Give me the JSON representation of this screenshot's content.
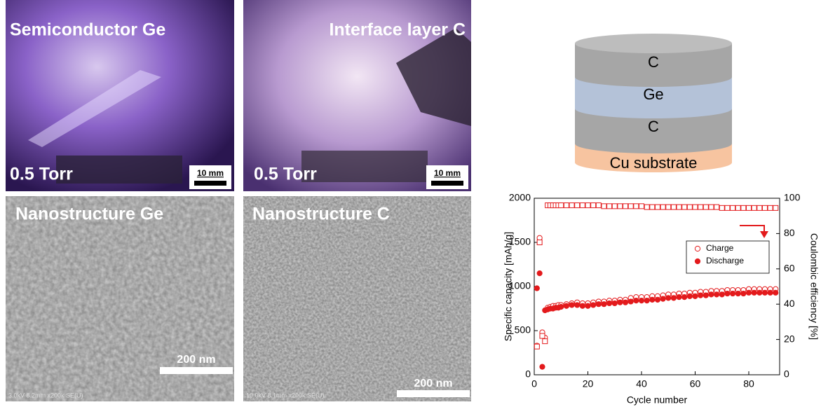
{
  "panels": {
    "photos": [
      {
        "label": "Semiconductor Ge",
        "pressure": "0.5 Torr",
        "scale_bar": "10 mm"
      },
      {
        "label": "Interface layer C",
        "pressure": "0.5 Torr",
        "scale_bar": "10 mm"
      }
    ],
    "sem": [
      {
        "label": "Nanostructure Ge",
        "scale_bar": "200 nm",
        "footer": "3.0kV 8.2mm x200k SE(U)"
      },
      {
        "label": "Nanostructure C",
        "scale_bar": "200 nm",
        "footer": "10.0kV 8.1mm x200k SE(U)"
      }
    ]
  },
  "diagram": {
    "layers": [
      "C",
      "Ge",
      "C",
      "Cu substrate"
    ]
  },
  "chart_data": {
    "type": "scatter",
    "x_label": "Cycle number",
    "y_label": "Specific capacity [mAh/g]",
    "y2_label": "Coulombic efficiency [%]",
    "x": [
      1,
      2,
      3,
      4,
      5,
      6,
      7,
      8,
      9,
      10,
      12,
      14,
      16,
      18,
      20,
      22,
      24,
      26,
      28,
      30,
      32,
      34,
      36,
      38,
      40,
      42,
      44,
      46,
      48,
      50,
      52,
      54,
      56,
      58,
      60,
      62,
      64,
      66,
      68,
      70,
      72,
      74,
      76,
      78,
      80,
      82,
      84,
      86,
      88,
      90
    ],
    "series": [
      {
        "name": "Charge",
        "color": "#e31a1c",
        "marker": "open-circle",
        "values": [
          330,
          1550,
          480,
          420,
          760,
          770,
          780,
          780,
          790,
          790,
          800,
          810,
          820,
          810,
          810,
          820,
          830,
          830,
          840,
          840,
          850,
          850,
          870,
          880,
          880,
          880,
          890,
          890,
          900,
          910,
          910,
          920,
          920,
          930,
          930,
          940,
          940,
          950,
          950,
          950,
          960,
          960,
          960,
          960,
          970,
          970,
          970,
          970,
          970,
          970
        ]
      },
      {
        "name": "Discharge",
        "color": "#e31a1c",
        "marker": "filled-circle",
        "values": [
          980,
          1150,
          90,
          730,
          740,
          750,
          750,
          760,
          760,
          770,
          780,
          790,
          790,
          780,
          780,
          790,
          800,
          800,
          810,
          810,
          820,
          820,
          830,
          840,
          840,
          840,
          850,
          850,
          860,
          870,
          870,
          880,
          880,
          890,
          890,
          900,
          900,
          910,
          910,
          910,
          920,
          920,
          920,
          920,
          930,
          930,
          930,
          930,
          930,
          930
        ]
      },
      {
        "color": "#e31a1c",
        "marker": "open-square",
        "axis": "y2",
        "values": [
          16,
          75,
          22,
          19,
          96,
          96,
          96,
          96,
          96,
          96,
          96,
          96,
          96,
          96,
          96,
          96,
          96,
          95.5,
          95.5,
          95.5,
          95.5,
          95.5,
          95.5,
          95.5,
          95.5,
          95,
          95,
          95,
          95,
          95,
          95,
          95,
          95,
          95,
          95,
          95,
          95,
          95,
          95,
          94.5,
          94.5,
          94.5,
          94.5,
          94.5,
          94.5,
          94.5,
          94.5,
          94.5,
          94.5,
          94.5
        ]
      }
    ],
    "xlim": [
      0,
      91.5
    ],
    "xticks": [
      0,
      20,
      40,
      60,
      80
    ],
    "ylim": [
      0,
      2000
    ],
    "yticks": [
      0,
      500,
      1000,
      1500,
      2000
    ],
    "y2lim": [
      0,
      100
    ],
    "y2ticks": [
      0,
      20,
      40,
      60,
      80,
      100
    ],
    "legend": "center right"
  }
}
